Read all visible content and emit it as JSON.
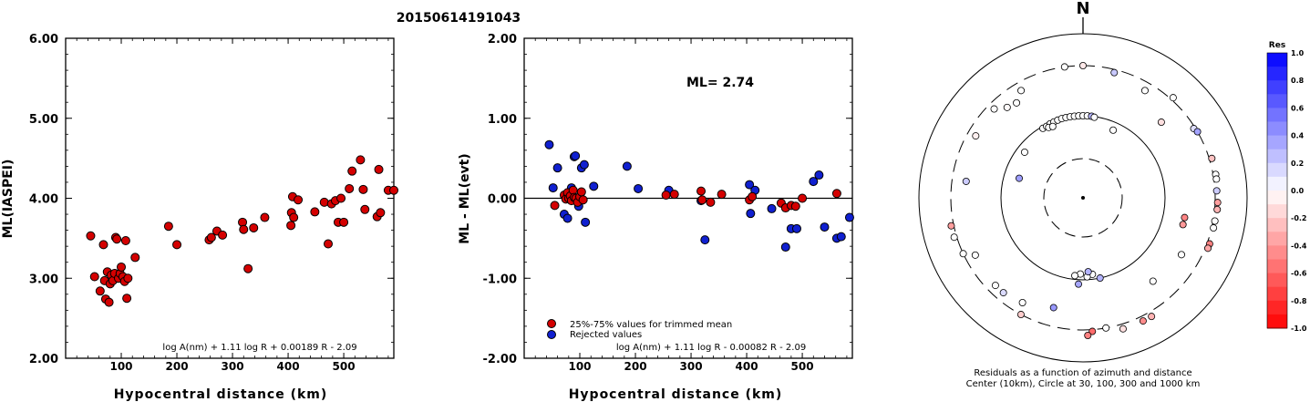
{
  "title": "20150614191043",
  "chart_data": [
    {
      "type": "scatter",
      "panel": "ml-vs-distance",
      "ylabel": "ML(IASPEI)",
      "xlabel": "Hypocentral distance (km)",
      "xlim": [
        0,
        590
      ],
      "ylim": [
        2.0,
        6.0
      ],
      "xticks": [
        "100",
        "200",
        "300",
        "400",
        "500"
      ],
      "yticks": [
        "2.00",
        "3.00",
        "4.00",
        "5.00",
        "6.00"
      ],
      "formula": "log A(nm) + 1.11 log R + 0.00189 R - 2.09",
      "points": [
        [
          45,
          3.53
        ],
        [
          52,
          3.02
        ],
        [
          62,
          2.84
        ],
        [
          68,
          3.42
        ],
        [
          70,
          2.97
        ],
        [
          72,
          2.74
        ],
        [
          75,
          3.08
        ],
        [
          78,
          2.7
        ],
        [
          80,
          2.93
        ],
        [
          82,
          3.04
        ],
        [
          85,
          2.97
        ],
        [
          88,
          3.06
        ],
        [
          90,
          3.51
        ],
        [
          92,
          3.49
        ],
        [
          95,
          3.0
        ],
        [
          98,
          3.06
        ],
        [
          100,
          3.14
        ],
        [
          103,
          3.02
        ],
        [
          106,
          2.96
        ],
        [
          108,
          3.47
        ],
        [
          110,
          2.75
        ],
        [
          112,
          3.0
        ],
        [
          125,
          3.26
        ],
        [
          185,
          3.65
        ],
        [
          200,
          3.42
        ],
        [
          258,
          3.48
        ],
        [
          262,
          3.51
        ],
        [
          272,
          3.59
        ],
        [
          282,
          3.54
        ],
        [
          318,
          3.7
        ],
        [
          320,
          3.61
        ],
        [
          328,
          3.12
        ],
        [
          338,
          3.63
        ],
        [
          358,
          3.76
        ],
        [
          405,
          3.66
        ],
        [
          406,
          3.82
        ],
        [
          408,
          4.02
        ],
        [
          410,
          3.76
        ],
        [
          418,
          3.98
        ],
        [
          448,
          3.83
        ],
        [
          465,
          3.95
        ],
        [
          472,
          3.43
        ],
        [
          478,
          3.93
        ],
        [
          485,
          3.97
        ],
        [
          490,
          3.7
        ],
        [
          495,
          4.0
        ],
        [
          500,
          3.7
        ],
        [
          510,
          4.12
        ],
        [
          515,
          4.34
        ],
        [
          530,
          4.48
        ],
        [
          535,
          4.11
        ],
        [
          538,
          3.86
        ],
        [
          560,
          3.77
        ],
        [
          563,
          4.36
        ],
        [
          566,
          3.82
        ],
        [
          580,
          4.1
        ],
        [
          590,
          4.1
        ]
      ]
    },
    {
      "type": "scatter",
      "panel": "residual-vs-distance",
      "ylabel": "ML - ML(evt)",
      "xlabel": "Hypocentral distance (km)",
      "xlim": [
        0,
        590
      ],
      "ylim": [
        -2.0,
        2.0
      ],
      "xticks": [
        "100",
        "200",
        "300",
        "400",
        "500"
      ],
      "yticks": [
        "-2.00",
        "-1.00",
        "0.00",
        "1.00",
        "2.00"
      ],
      "ml_label": "ML= 2.74",
      "formula": "log A(nm) + 1.11 log R - 0.00082 R - 2.09",
      "legend": [
        "25%-75% values for trimmed mean",
        "Rejected values"
      ],
      "trimmed": [
        [
          55,
          -0.09
        ],
        [
          72,
          0.04
        ],
        [
          75,
          -0.01
        ],
        [
          78,
          0.07
        ],
        [
          80,
          0.0
        ],
        [
          83,
          0.03
        ],
        [
          85,
          -0.03
        ],
        [
          88,
          0.1
        ],
        [
          90,
          0.01
        ],
        [
          93,
          0.0
        ],
        [
          96,
          -0.05
        ],
        [
          100,
          0.02
        ],
        [
          103,
          0.08
        ],
        [
          106,
          -0.02
        ],
        [
          255,
          0.04
        ],
        [
          270,
          0.05
        ],
        [
          318,
          0.09
        ],
        [
          320,
          -0.02
        ],
        [
          335,
          -0.05
        ],
        [
          355,
          0.05
        ],
        [
          405,
          -0.02
        ],
        [
          410,
          0.02
        ],
        [
          462,
          -0.06
        ],
        [
          470,
          -0.12
        ],
        [
          480,
          -0.09
        ],
        [
          488,
          -0.1
        ],
        [
          500,
          0.0
        ],
        [
          562,
          0.06
        ]
      ],
      "rejected": [
        [
          45,
          0.67
        ],
        [
          52,
          0.13
        ],
        [
          60,
          0.38
        ],
        [
          72,
          -0.2
        ],
        [
          78,
          -0.25
        ],
        [
          85,
          0.13
        ],
        [
          90,
          0.52
        ],
        [
          92,
          0.53
        ],
        [
          98,
          -0.1
        ],
        [
          103,
          0.38
        ],
        [
          108,
          0.42
        ],
        [
          110,
          -0.3
        ],
        [
          125,
          0.15
        ],
        [
          185,
          0.4
        ],
        [
          205,
          0.12
        ],
        [
          260,
          0.1
        ],
        [
          318,
          -0.03
        ],
        [
          325,
          -0.52
        ],
        [
          405,
          0.17
        ],
        [
          407,
          -0.19
        ],
        [
          415,
          0.1
        ],
        [
          445,
          -0.13
        ],
        [
          470,
          -0.61
        ],
        [
          480,
          -0.38
        ],
        [
          490,
          -0.38
        ],
        [
          520,
          0.21
        ],
        [
          530,
          0.29
        ],
        [
          540,
          -0.36
        ],
        [
          562,
          -0.5
        ],
        [
          570,
          -0.48
        ],
        [
          585,
          -0.24
        ]
      ]
    },
    {
      "type": "polar-scatter",
      "panel": "azimuth-residuals",
      "north_label": "N",
      "caption_line1": "Residuals as a function of azimuth and distance",
      "caption_line2": "Center (10km), Circle at 30, 100, 300 and 1000 km",
      "colorbar_title": "Res",
      "colorbar_ticks": [
        "1.0",
        "0.8",
        "0.6",
        "0.4",
        "0.2",
        "0.0",
        "-0.2",
        "-0.4",
        "-0.6",
        "-0.8",
        "-1.0"
      ],
      "circle_distances_km": [
        30,
        100,
        300,
        1000
      ],
      "stations": [
        {
          "az": 352,
          "dist_km": 300,
          "res": 0.0
        },
        {
          "az": 0,
          "dist_km": 300,
          "res": -0.09
        },
        {
          "az": 14,
          "dist_km": 280,
          "res": 0.21
        },
        {
          "az": 320,
          "dist_km": 220,
          "res": -0.02
        },
        {
          "az": 325,
          "dist_km": 210,
          "res": 0.0
        },
        {
          "az": 30,
          "dist_km": 250,
          "res": 0.0
        },
        {
          "az": 42,
          "dist_km": 330,
          "res": 0.0
        },
        {
          "az": 330,
          "dist_km": 95,
          "res": 0.0
        },
        {
          "az": 333,
          "dist_km": 95,
          "res": 0.0
        },
        {
          "az": 336,
          "dist_km": 97,
          "res": 0.0
        },
        {
          "az": 339,
          "dist_km": 98,
          "res": 0.0
        },
        {
          "az": 342,
          "dist_km": 99,
          "res": 0.0
        },
        {
          "az": 345,
          "dist_km": 100,
          "res": 0.0
        },
        {
          "az": 348,
          "dist_km": 100,
          "res": 0.0
        },
        {
          "az": 351,
          "dist_km": 100,
          "res": 0.0
        },
        {
          "az": 354,
          "dist_km": 100,
          "res": 0.0
        },
        {
          "az": 357,
          "dist_km": 100,
          "res": 0.0
        },
        {
          "az": 360,
          "dist_km": 100,
          "res": 0.0
        },
        {
          "az": 3,
          "dist_km": 100,
          "res": 0.0
        },
        {
          "az": 6,
          "dist_km": 100,
          "res": 0.29
        },
        {
          "az": 8,
          "dist_km": 98,
          "res": 0.0
        },
        {
          "az": 334,
          "dist_km": 90,
          "res": 0.0
        },
        {
          "az": 337,
          "dist_km": 88,
          "res": 0.0
        },
        {
          "az": 24,
          "dist_km": 80,
          "res": 0.0
        },
        {
          "az": 300,
          "dist_km": 250,
          "res": -0.06
        },
        {
          "az": 308,
          "dist_km": 80,
          "res": 0.0
        },
        {
          "az": 287,
          "dist_km": 65,
          "res": 0.38
        },
        {
          "az": 46,
          "dist_km": 180,
          "res": -0.12
        },
        {
          "az": 58,
          "dist_km": 290,
          "res": 0.13
        },
        {
          "az": 60,
          "dist_km": 300,
          "res": 0.36
        },
        {
          "az": 73,
          "dist_km": 330,
          "res": -0.24
        },
        {
          "az": 80,
          "dist_km": 330,
          "res": 0.0
        },
        {
          "az": 82,
          "dist_km": 330,
          "res": 0.0
        },
        {
          "az": 87,
          "dist_km": 320,
          "res": 0.2
        },
        {
          "az": 92,
          "dist_km": 330,
          "res": -0.38
        },
        {
          "az": 95,
          "dist_km": 330,
          "res": -0.3
        },
        {
          "az": 100,
          "dist_km": 320,
          "res": 0.0
        },
        {
          "az": 103,
          "dist_km": 320,
          "res": 0.0
        },
        {
          "az": 110,
          "dist_km": 330,
          "res": -0.5
        },
        {
          "az": 112,
          "dist_km": 330,
          "res": -0.35
        },
        {
          "az": 101,
          "dist_km": 160,
          "res": -0.48
        },
        {
          "az": 105,
          "dist_km": 160,
          "res": -0.4
        },
        {
          "az": 120,
          "dist_km": 200,
          "res": 0.0
        },
        {
          "az": 140,
          "dist_km": 180,
          "res": 0.0
        },
        {
          "az": 150,
          "dist_km": 360,
          "res": -0.3
        },
        {
          "az": 173,
          "dist_km": 87,
          "res": 0.0
        },
        {
          "az": 177,
          "dist_km": 92,
          "res": 0.0
        },
        {
          "az": 176,
          "dist_km": 80,
          "res": 0.3
        },
        {
          "az": 168,
          "dist_km": 100,
          "res": 0.3
        },
        {
          "az": 182,
          "dist_km": 85,
          "res": 0.0
        },
        {
          "az": 186,
          "dist_km": 90,
          "res": 0.0
        },
        {
          "az": 183,
          "dist_km": 110,
          "res": 0.35
        },
        {
          "az": 195,
          "dist_km": 200,
          "res": 0.4
        },
        {
          "az": 210,
          "dist_km": 235,
          "res": 0.0
        },
        {
          "az": 220,
          "dist_km": 250,
          "res": 0.14
        },
        {
          "az": 225,
          "dist_km": 250,
          "res": 0.0
        },
        {
          "az": 208,
          "dist_km": 300,
          "res": -0.2
        },
        {
          "az": 176,
          "dist_km": 320,
          "res": -0.58
        },
        {
          "az": 178,
          "dist_km": 370,
          "res": -0.5
        },
        {
          "az": 170,
          "dist_km": 300,
          "res": 0.0
        },
        {
          "az": 163,
          "dist_km": 360,
          "res": -0.12
        },
        {
          "az": 154,
          "dist_km": 360,
          "res": -0.45
        },
        {
          "az": 245,
          "dist_km": 300,
          "res": 0.0
        },
        {
          "az": 258,
          "dist_km": 330,
          "res": -0.38
        },
        {
          "az": 253,
          "dist_km": 330,
          "res": 0.0
        },
        {
          "az": 278,
          "dist_km": 220,
          "res": 0.2
        },
        {
          "az": 242,
          "dist_km": 240,
          "res": 0.0
        },
        {
          "az": 315,
          "dist_km": 260,
          "res": 0.0
        },
        {
          "az": 330,
          "dist_km": 250,
          "res": 0.0
        }
      ]
    }
  ]
}
